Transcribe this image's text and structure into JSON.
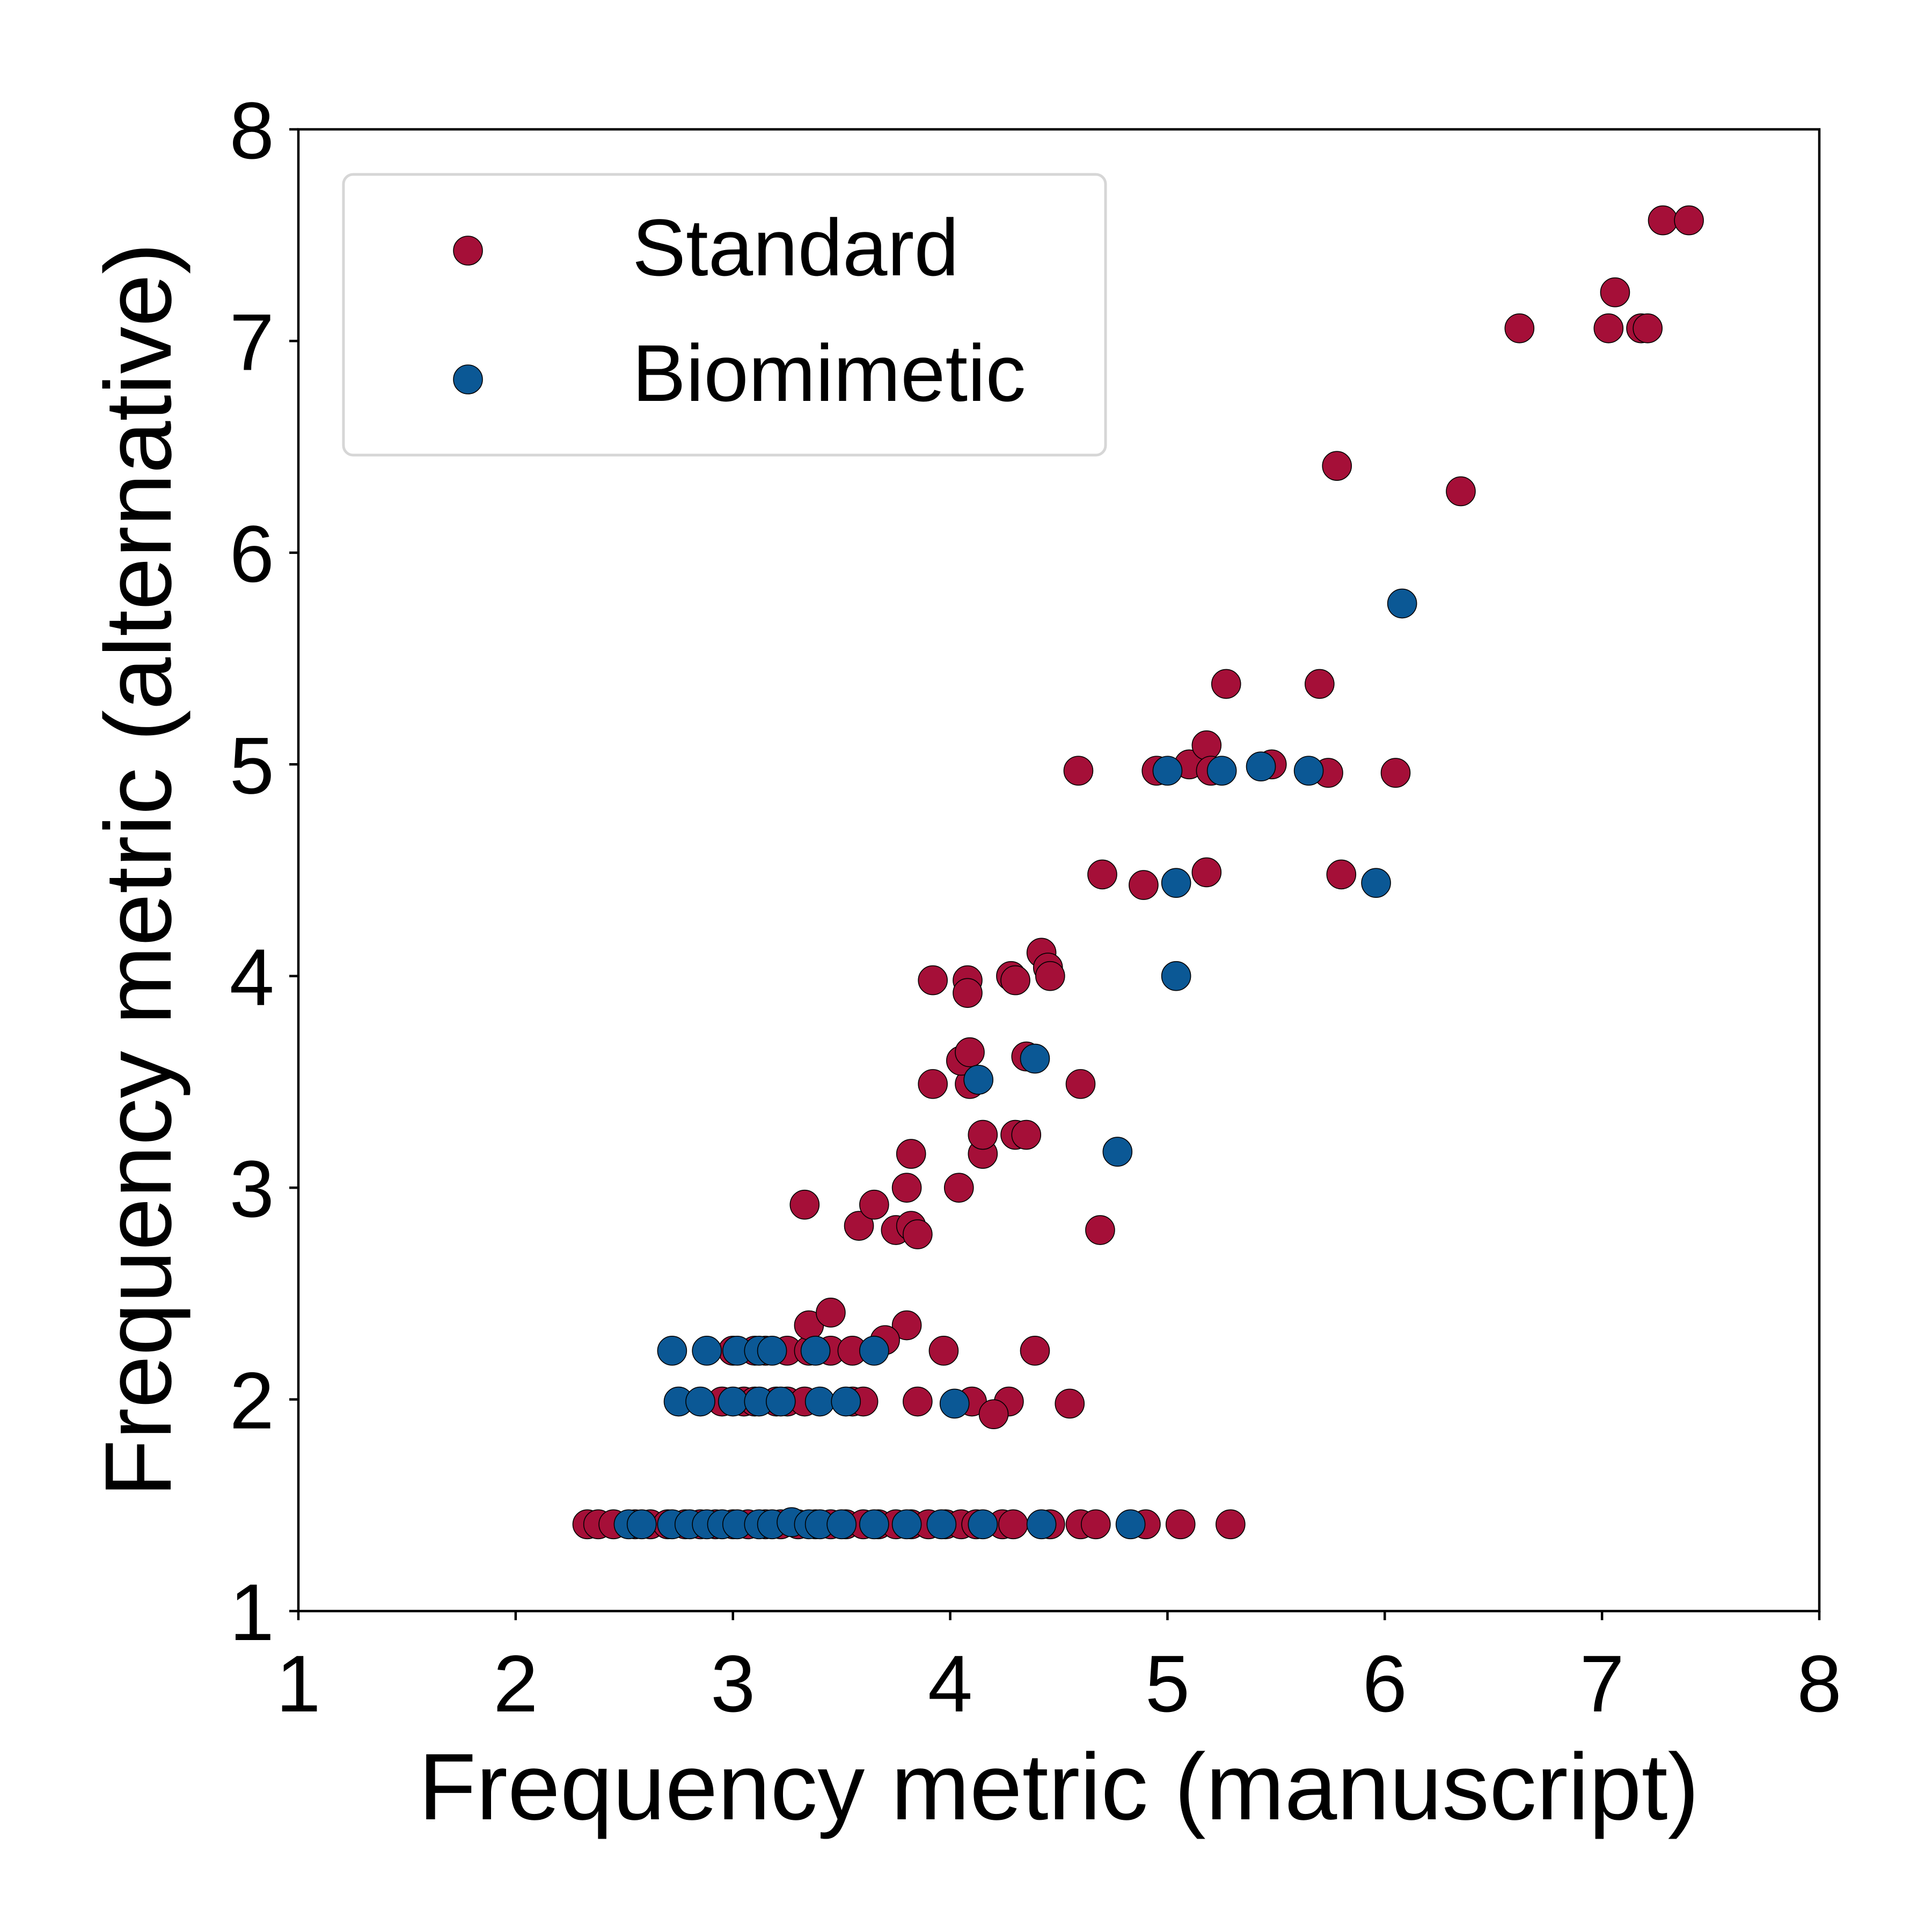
{
  "chart_data": {
    "type": "scatter",
    "title": "",
    "xlabel": "Frequency metric (manuscript)",
    "ylabel": "Frequency metric (alternative)",
    "xlim": [
      1,
      8
    ],
    "ylim": [
      1,
      8
    ],
    "xticks": [
      "1",
      "2",
      "3",
      "4",
      "5",
      "6",
      "7",
      "8"
    ],
    "yticks": [
      "1",
      "2",
      "3",
      "4",
      "5",
      "6",
      "7",
      "8"
    ],
    "grid": false,
    "legend_position": "top-left",
    "series": [
      {
        "name": "Standard",
        "color": "#A50F38",
        "points": [
          [
            2.33,
            1.41
          ],
          [
            2.38,
            1.41
          ],
          [
            2.45,
            1.41
          ],
          [
            2.55,
            1.41
          ],
          [
            2.62,
            1.41
          ],
          [
            2.7,
            1.41
          ],
          [
            2.78,
            1.41
          ],
          [
            2.85,
            1.41
          ],
          [
            2.92,
            1.41
          ],
          [
            3.0,
            1.41
          ],
          [
            3.07,
            1.41
          ],
          [
            3.15,
            1.41
          ],
          [
            3.22,
            1.41
          ],
          [
            3.3,
            1.41
          ],
          [
            3.38,
            1.41
          ],
          [
            3.45,
            1.41
          ],
          [
            3.52,
            1.41
          ],
          [
            3.6,
            1.41
          ],
          [
            3.67,
            1.41
          ],
          [
            3.75,
            1.41
          ],
          [
            3.82,
            1.41
          ],
          [
            3.9,
            1.41
          ],
          [
            3.98,
            1.41
          ],
          [
            4.05,
            1.41
          ],
          [
            4.12,
            1.41
          ],
          [
            4.24,
            1.41
          ],
          [
            4.29,
            1.41
          ],
          [
            4.46,
            1.41
          ],
          [
            4.6,
            1.41
          ],
          [
            4.67,
            1.41
          ],
          [
            4.9,
            1.41
          ],
          [
            5.06,
            1.41
          ],
          [
            5.29,
            1.41
          ],
          [
            2.95,
            1.99
          ],
          [
            3.05,
            1.99
          ],
          [
            3.1,
            1.99
          ],
          [
            3.2,
            1.99
          ],
          [
            3.25,
            1.99
          ],
          [
            3.33,
            1.99
          ],
          [
            3.55,
            1.99
          ],
          [
            3.6,
            1.99
          ],
          [
            3.85,
            1.99
          ],
          [
            4.1,
            1.99
          ],
          [
            4.27,
            1.99
          ],
          [
            4.55,
            1.98
          ],
          [
            4.2,
            1.93
          ],
          [
            3.0,
            2.23
          ],
          [
            3.1,
            2.23
          ],
          [
            3.15,
            2.23
          ],
          [
            3.25,
            2.23
          ],
          [
            3.35,
            2.23
          ],
          [
            3.45,
            2.23
          ],
          [
            3.55,
            2.23
          ],
          [
            3.97,
            2.23
          ],
          [
            4.39,
            2.23
          ],
          [
            3.35,
            2.35
          ],
          [
            3.45,
            2.41
          ],
          [
            3.8,
            2.35
          ],
          [
            3.7,
            2.28
          ],
          [
            3.33,
            2.92
          ],
          [
            3.58,
            2.82
          ],
          [
            3.65,
            2.92
          ],
          [
            3.75,
            2.8
          ],
          [
            3.82,
            2.82
          ],
          [
            3.85,
            2.78
          ],
          [
            3.8,
            3.0
          ],
          [
            4.04,
            3.0
          ],
          [
            3.82,
            3.16
          ],
          [
            4.15,
            3.16
          ],
          [
            4.15,
            3.25
          ],
          [
            4.3,
            3.25
          ],
          [
            4.35,
            3.25
          ],
          [
            4.69,
            2.8
          ],
          [
            3.92,
            3.49
          ],
          [
            4.09,
            3.49
          ],
          [
            4.6,
            3.49
          ],
          [
            4.05,
            3.6
          ],
          [
            4.09,
            3.64
          ],
          [
            4.35,
            3.62
          ],
          [
            3.92,
            3.98
          ],
          [
            4.08,
            3.98
          ],
          [
            4.08,
            3.92
          ],
          [
            4.28,
            4.0
          ],
          [
            4.3,
            3.98
          ],
          [
            4.42,
            4.11
          ],
          [
            4.45,
            4.04
          ],
          [
            4.46,
            4.0
          ],
          [
            4.59,
            4.97
          ],
          [
            4.7,
            4.48
          ],
          [
            4.89,
            4.43
          ],
          [
            4.95,
            4.97
          ],
          [
            5.1,
            5.0
          ],
          [
            5.18,
            5.09
          ],
          [
            5.2,
            4.97
          ],
          [
            5.18,
            4.49
          ],
          [
            5.27,
            5.38
          ],
          [
            5.48,
            5.0
          ],
          [
            5.7,
            5.38
          ],
          [
            5.74,
            4.96
          ],
          [
            5.78,
            6.41
          ],
          [
            5.8,
            4.48
          ],
          [
            6.05,
            4.96
          ],
          [
            6.35,
            6.29
          ],
          [
            6.62,
            7.06
          ],
          [
            7.03,
            7.06
          ],
          [
            7.06,
            7.23
          ],
          [
            7.18,
            7.06
          ],
          [
            7.21,
            7.06
          ],
          [
            7.28,
            7.57
          ],
          [
            7.4,
            7.57
          ]
        ]
      },
      {
        "name": "Biomimetic",
        "color": "#0B5895",
        "points": [
          [
            2.52,
            1.41
          ],
          [
            2.58,
            1.41
          ],
          [
            2.72,
            1.41
          ],
          [
            2.8,
            1.41
          ],
          [
            2.88,
            1.41
          ],
          [
            2.95,
            1.41
          ],
          [
            3.02,
            1.41
          ],
          [
            3.12,
            1.41
          ],
          [
            3.18,
            1.41
          ],
          [
            3.27,
            1.42
          ],
          [
            3.35,
            1.41
          ],
          [
            3.4,
            1.41
          ],
          [
            3.5,
            1.41
          ],
          [
            3.65,
            1.41
          ],
          [
            3.8,
            1.41
          ],
          [
            3.96,
            1.41
          ],
          [
            4.15,
            1.41
          ],
          [
            4.42,
            1.41
          ],
          [
            4.83,
            1.41
          ],
          [
            2.75,
            1.99
          ],
          [
            2.85,
            1.99
          ],
          [
            3.0,
            1.99
          ],
          [
            3.12,
            1.99
          ],
          [
            3.22,
            1.99
          ],
          [
            3.4,
            1.99
          ],
          [
            3.52,
            1.99
          ],
          [
            4.02,
            1.98
          ],
          [
            2.72,
            2.23
          ],
          [
            2.88,
            2.23
          ],
          [
            3.02,
            2.23
          ],
          [
            3.12,
            2.23
          ],
          [
            3.18,
            2.23
          ],
          [
            3.38,
            2.23
          ],
          [
            3.65,
            2.23
          ],
          [
            4.13,
            3.51
          ],
          [
            4.39,
            3.61
          ],
          [
            4.77,
            3.17
          ],
          [
            5.04,
            4.0
          ],
          [
            5.04,
            4.44
          ],
          [
            5.0,
            4.97
          ],
          [
            5.25,
            4.97
          ],
          [
            5.43,
            4.99
          ],
          [
            5.65,
            4.97
          ],
          [
            5.96,
            4.44
          ],
          [
            6.08,
            5.76
          ]
        ]
      }
    ]
  }
}
